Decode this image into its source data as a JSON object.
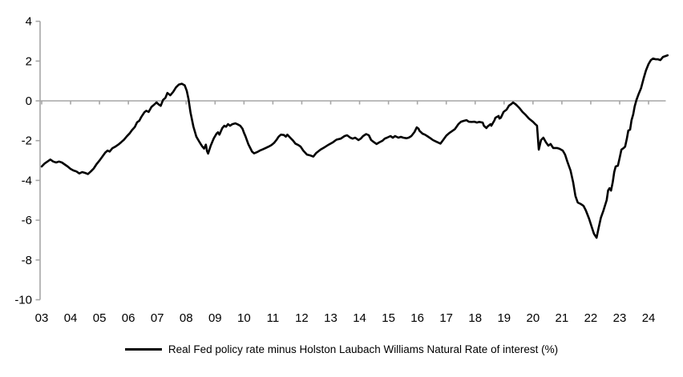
{
  "chart_data": {
    "type": "line",
    "title": "",
    "legend_position": "bottom",
    "grid": false,
    "background": "#ffffff",
    "axis_color": "#a6a6a6",
    "x_axis": {
      "label": "",
      "min": 2003,
      "max": 2024.7,
      "tick_labels": [
        "03",
        "04",
        "05",
        "06",
        "07",
        "08",
        "09",
        "10",
        "11",
        "12",
        "13",
        "14",
        "15",
        "16",
        "17",
        "18",
        "19",
        "20",
        "21",
        "22",
        "23",
        "24"
      ],
      "tick_years": [
        2003,
        2004,
        2005,
        2006,
        2007,
        2008,
        2009,
        2010,
        2011,
        2012,
        2013,
        2014,
        2015,
        2016,
        2017,
        2018,
        2019,
        2020,
        2021,
        2022,
        2023,
        2024
      ]
    },
    "y_axis": {
      "label": "",
      "min": -10,
      "max": 4,
      "ticks": [
        4,
        2,
        0,
        -2,
        -4,
        -6,
        -8,
        -10
      ]
    },
    "zero_baseline": true,
    "series": [
      {
        "name": "Real Fed policy rate minus Holston Laubach Williams Natural Rate of interest (%)",
        "color": "#000000",
        "points": [
          [
            2003.0,
            -3.3
          ],
          [
            2003.1,
            -3.15
          ],
          [
            2003.2,
            -3.05
          ],
          [
            2003.3,
            -2.95
          ],
          [
            2003.4,
            -3.05
          ],
          [
            2003.5,
            -3.1
          ],
          [
            2003.6,
            -3.05
          ],
          [
            2003.7,
            -3.1
          ],
          [
            2003.8,
            -3.2
          ],
          [
            2003.9,
            -3.3
          ],
          [
            2004.0,
            -3.42
          ],
          [
            2004.1,
            -3.5
          ],
          [
            2004.2,
            -3.55
          ],
          [
            2004.3,
            -3.65
          ],
          [
            2004.4,
            -3.58
          ],
          [
            2004.5,
            -3.62
          ],
          [
            2004.6,
            -3.68
          ],
          [
            2004.7,
            -3.55
          ],
          [
            2004.8,
            -3.4
          ],
          [
            2004.9,
            -3.18
          ],
          [
            2005.0,
            -3.0
          ],
          [
            2005.1,
            -2.8
          ],
          [
            2005.2,
            -2.6
          ],
          [
            2005.28,
            -2.5
          ],
          [
            2005.35,
            -2.55
          ],
          [
            2005.45,
            -2.38
          ],
          [
            2005.55,
            -2.3
          ],
          [
            2005.65,
            -2.2
          ],
          [
            2005.75,
            -2.08
          ],
          [
            2005.85,
            -1.95
          ],
          [
            2005.95,
            -1.78
          ],
          [
            2006.05,
            -1.62
          ],
          [
            2006.12,
            -1.48
          ],
          [
            2006.22,
            -1.32
          ],
          [
            2006.3,
            -1.08
          ],
          [
            2006.38,
            -1.0
          ],
          [
            2006.45,
            -0.8
          ],
          [
            2006.55,
            -0.58
          ],
          [
            2006.62,
            -0.5
          ],
          [
            2006.7,
            -0.56
          ],
          [
            2006.8,
            -0.3
          ],
          [
            2006.9,
            -0.18
          ],
          [
            2006.97,
            -0.08
          ],
          [
            2007.05,
            -0.18
          ],
          [
            2007.12,
            -0.25
          ],
          [
            2007.2,
            0.05
          ],
          [
            2007.28,
            0.15
          ],
          [
            2007.35,
            0.4
          ],
          [
            2007.45,
            0.28
          ],
          [
            2007.55,
            0.45
          ],
          [
            2007.65,
            0.68
          ],
          [
            2007.75,
            0.82
          ],
          [
            2007.85,
            0.86
          ],
          [
            2007.95,
            0.78
          ],
          [
            2008.02,
            0.5
          ],
          [
            2008.08,
            0.1
          ],
          [
            2008.15,
            -0.6
          ],
          [
            2008.25,
            -1.3
          ],
          [
            2008.35,
            -1.8
          ],
          [
            2008.45,
            -2.05
          ],
          [
            2008.55,
            -2.28
          ],
          [
            2008.62,
            -2.4
          ],
          [
            2008.68,
            -2.2
          ],
          [
            2008.72,
            -2.52
          ],
          [
            2008.76,
            -2.65
          ],
          [
            2008.85,
            -2.25
          ],
          [
            2008.95,
            -1.9
          ],
          [
            2009.05,
            -1.65
          ],
          [
            2009.1,
            -1.58
          ],
          [
            2009.15,
            -1.7
          ],
          [
            2009.25,
            -1.37
          ],
          [
            2009.32,
            -1.25
          ],
          [
            2009.38,
            -1.3
          ],
          [
            2009.45,
            -1.17
          ],
          [
            2009.52,
            -1.25
          ],
          [
            2009.6,
            -1.17
          ],
          [
            2009.7,
            -1.13
          ],
          [
            2009.78,
            -1.18
          ],
          [
            2009.87,
            -1.25
          ],
          [
            2009.95,
            -1.4
          ],
          [
            2010.0,
            -1.6
          ],
          [
            2010.05,
            -1.78
          ],
          [
            2010.1,
            -1.98
          ],
          [
            2010.15,
            -2.18
          ],
          [
            2010.22,
            -2.38
          ],
          [
            2010.28,
            -2.55
          ],
          [
            2010.35,
            -2.64
          ],
          [
            2010.45,
            -2.58
          ],
          [
            2010.55,
            -2.5
          ],
          [
            2010.65,
            -2.44
          ],
          [
            2010.75,
            -2.37
          ],
          [
            2010.85,
            -2.3
          ],
          [
            2010.95,
            -2.22
          ],
          [
            2011.05,
            -2.1
          ],
          [
            2011.13,
            -1.95
          ],
          [
            2011.2,
            -1.8
          ],
          [
            2011.28,
            -1.7
          ],
          [
            2011.38,
            -1.72
          ],
          [
            2011.45,
            -1.8
          ],
          [
            2011.5,
            -1.7
          ],
          [
            2011.6,
            -1.85
          ],
          [
            2011.7,
            -2.0
          ],
          [
            2011.78,
            -2.15
          ],
          [
            2011.88,
            -2.22
          ],
          [
            2011.96,
            -2.3
          ],
          [
            2012.05,
            -2.5
          ],
          [
            2012.18,
            -2.7
          ],
          [
            2012.3,
            -2.75
          ],
          [
            2012.4,
            -2.8
          ],
          [
            2012.5,
            -2.62
          ],
          [
            2012.65,
            -2.45
          ],
          [
            2012.8,
            -2.32
          ],
          [
            2012.93,
            -2.2
          ],
          [
            2013.08,
            -2.08
          ],
          [
            2013.2,
            -1.95
          ],
          [
            2013.35,
            -1.9
          ],
          [
            2013.48,
            -1.77
          ],
          [
            2013.57,
            -1.73
          ],
          [
            2013.68,
            -1.85
          ],
          [
            2013.76,
            -1.9
          ],
          [
            2013.85,
            -1.85
          ],
          [
            2013.96,
            -1.97
          ],
          [
            2014.04,
            -1.9
          ],
          [
            2014.12,
            -1.77
          ],
          [
            2014.23,
            -1.67
          ],
          [
            2014.32,
            -1.73
          ],
          [
            2014.4,
            -1.97
          ],
          [
            2014.51,
            -2.09
          ],
          [
            2014.59,
            -2.17
          ],
          [
            2014.68,
            -2.09
          ],
          [
            2014.79,
            -2.01
          ],
          [
            2014.87,
            -1.9
          ],
          [
            2014.95,
            -1.85
          ],
          [
            2015.07,
            -1.77
          ],
          [
            2015.15,
            -1.85
          ],
          [
            2015.23,
            -1.77
          ],
          [
            2015.34,
            -1.85
          ],
          [
            2015.43,
            -1.81
          ],
          [
            2015.51,
            -1.85
          ],
          [
            2015.62,
            -1.88
          ],
          [
            2015.7,
            -1.85
          ],
          [
            2015.79,
            -1.77
          ],
          [
            2015.9,
            -1.57
          ],
          [
            2015.98,
            -1.33
          ],
          [
            2016.04,
            -1.4
          ],
          [
            2016.07,
            -1.5
          ],
          [
            2016.18,
            -1.65
          ],
          [
            2016.26,
            -1.7
          ],
          [
            2016.34,
            -1.77
          ],
          [
            2016.45,
            -1.88
          ],
          [
            2016.54,
            -1.97
          ],
          [
            2016.65,
            -2.05
          ],
          [
            2016.8,
            -2.15
          ],
          [
            2016.9,
            -1.95
          ],
          [
            2017.0,
            -1.75
          ],
          [
            2017.1,
            -1.62
          ],
          [
            2017.2,
            -1.52
          ],
          [
            2017.3,
            -1.42
          ],
          [
            2017.42,
            -1.17
          ],
          [
            2017.51,
            -1.05
          ],
          [
            2017.59,
            -1.01
          ],
          [
            2017.7,
            -0.97
          ],
          [
            2017.78,
            -1.05
          ],
          [
            2017.87,
            -1.06
          ],
          [
            2017.98,
            -1.05
          ],
          [
            2018.06,
            -1.09
          ],
          [
            2018.14,
            -1.06
          ],
          [
            2018.26,
            -1.09
          ],
          [
            2018.3,
            -1.25
          ],
          [
            2018.39,
            -1.37
          ],
          [
            2018.42,
            -1.3
          ],
          [
            2018.53,
            -1.17
          ],
          [
            2018.56,
            -1.25
          ],
          [
            2018.67,
            -0.97
          ],
          [
            2018.7,
            -0.85
          ],
          [
            2018.81,
            -0.76
          ],
          [
            2018.84,
            -0.89
          ],
          [
            2018.89,
            -0.85
          ],
          [
            2018.98,
            -0.56
          ],
          [
            2019.09,
            -0.44
          ],
          [
            2019.17,
            -0.24
          ],
          [
            2019.25,
            -0.16
          ],
          [
            2019.31,
            -0.08
          ],
          [
            2019.39,
            -0.16
          ],
          [
            2019.45,
            -0.24
          ],
          [
            2019.53,
            -0.36
          ],
          [
            2019.64,
            -0.56
          ],
          [
            2019.73,
            -0.68
          ],
          [
            2019.86,
            -0.89
          ],
          [
            2020.0,
            -1.05
          ],
          [
            2020.08,
            -1.17
          ],
          [
            2020.14,
            -1.25
          ],
          [
            2020.2,
            -2.45
          ],
          [
            2020.28,
            -1.97
          ],
          [
            2020.36,
            -1.85
          ],
          [
            2020.45,
            -2.09
          ],
          [
            2020.53,
            -2.25
          ],
          [
            2020.61,
            -2.17
          ],
          [
            2020.7,
            -2.37
          ],
          [
            2020.83,
            -2.37
          ],
          [
            2020.92,
            -2.41
          ],
          [
            2021.03,
            -2.5
          ],
          [
            2021.11,
            -2.7
          ],
          [
            2021.19,
            -3.05
          ],
          [
            2021.3,
            -3.5
          ],
          [
            2021.39,
            -4.1
          ],
          [
            2021.47,
            -4.78
          ],
          [
            2021.55,
            -5.11
          ],
          [
            2021.66,
            -5.19
          ],
          [
            2021.75,
            -5.28
          ],
          [
            2021.83,
            -5.51
          ],
          [
            2021.94,
            -5.92
          ],
          [
            2022.03,
            -6.32
          ],
          [
            2022.11,
            -6.68
          ],
          [
            2022.2,
            -6.88
          ],
          [
            2022.27,
            -6.4
          ],
          [
            2022.35,
            -5.87
          ],
          [
            2022.44,
            -5.51
          ],
          [
            2022.55,
            -4.99
          ],
          [
            2022.6,
            -4.5
          ],
          [
            2022.65,
            -4.39
          ],
          [
            2022.7,
            -4.51
          ],
          [
            2022.76,
            -4.1
          ],
          [
            2022.81,
            -3.58
          ],
          [
            2022.86,
            -3.3
          ],
          [
            2022.94,
            -3.26
          ],
          [
            2023.0,
            -2.86
          ],
          [
            2023.06,
            -2.45
          ],
          [
            2023.14,
            -2.37
          ],
          [
            2023.19,
            -2.3
          ],
          [
            2023.25,
            -1.89
          ],
          [
            2023.3,
            -1.49
          ],
          [
            2023.36,
            -1.45
          ],
          [
            2023.41,
            -0.97
          ],
          [
            2023.47,
            -0.68
          ],
          [
            2023.52,
            -0.28
          ],
          [
            2023.58,
            0.04
          ],
          [
            2023.66,
            0.36
          ],
          [
            2023.74,
            0.64
          ],
          [
            2023.83,
            1.13
          ],
          [
            2023.91,
            1.53
          ],
          [
            2024.0,
            1.85
          ],
          [
            2024.08,
            2.05
          ],
          [
            2024.16,
            2.13
          ],
          [
            2024.25,
            2.09
          ],
          [
            2024.33,
            2.09
          ],
          [
            2024.41,
            2.05
          ],
          [
            2024.5,
            2.21
          ],
          [
            2024.58,
            2.25
          ],
          [
            2024.66,
            2.29
          ]
        ]
      }
    ]
  }
}
